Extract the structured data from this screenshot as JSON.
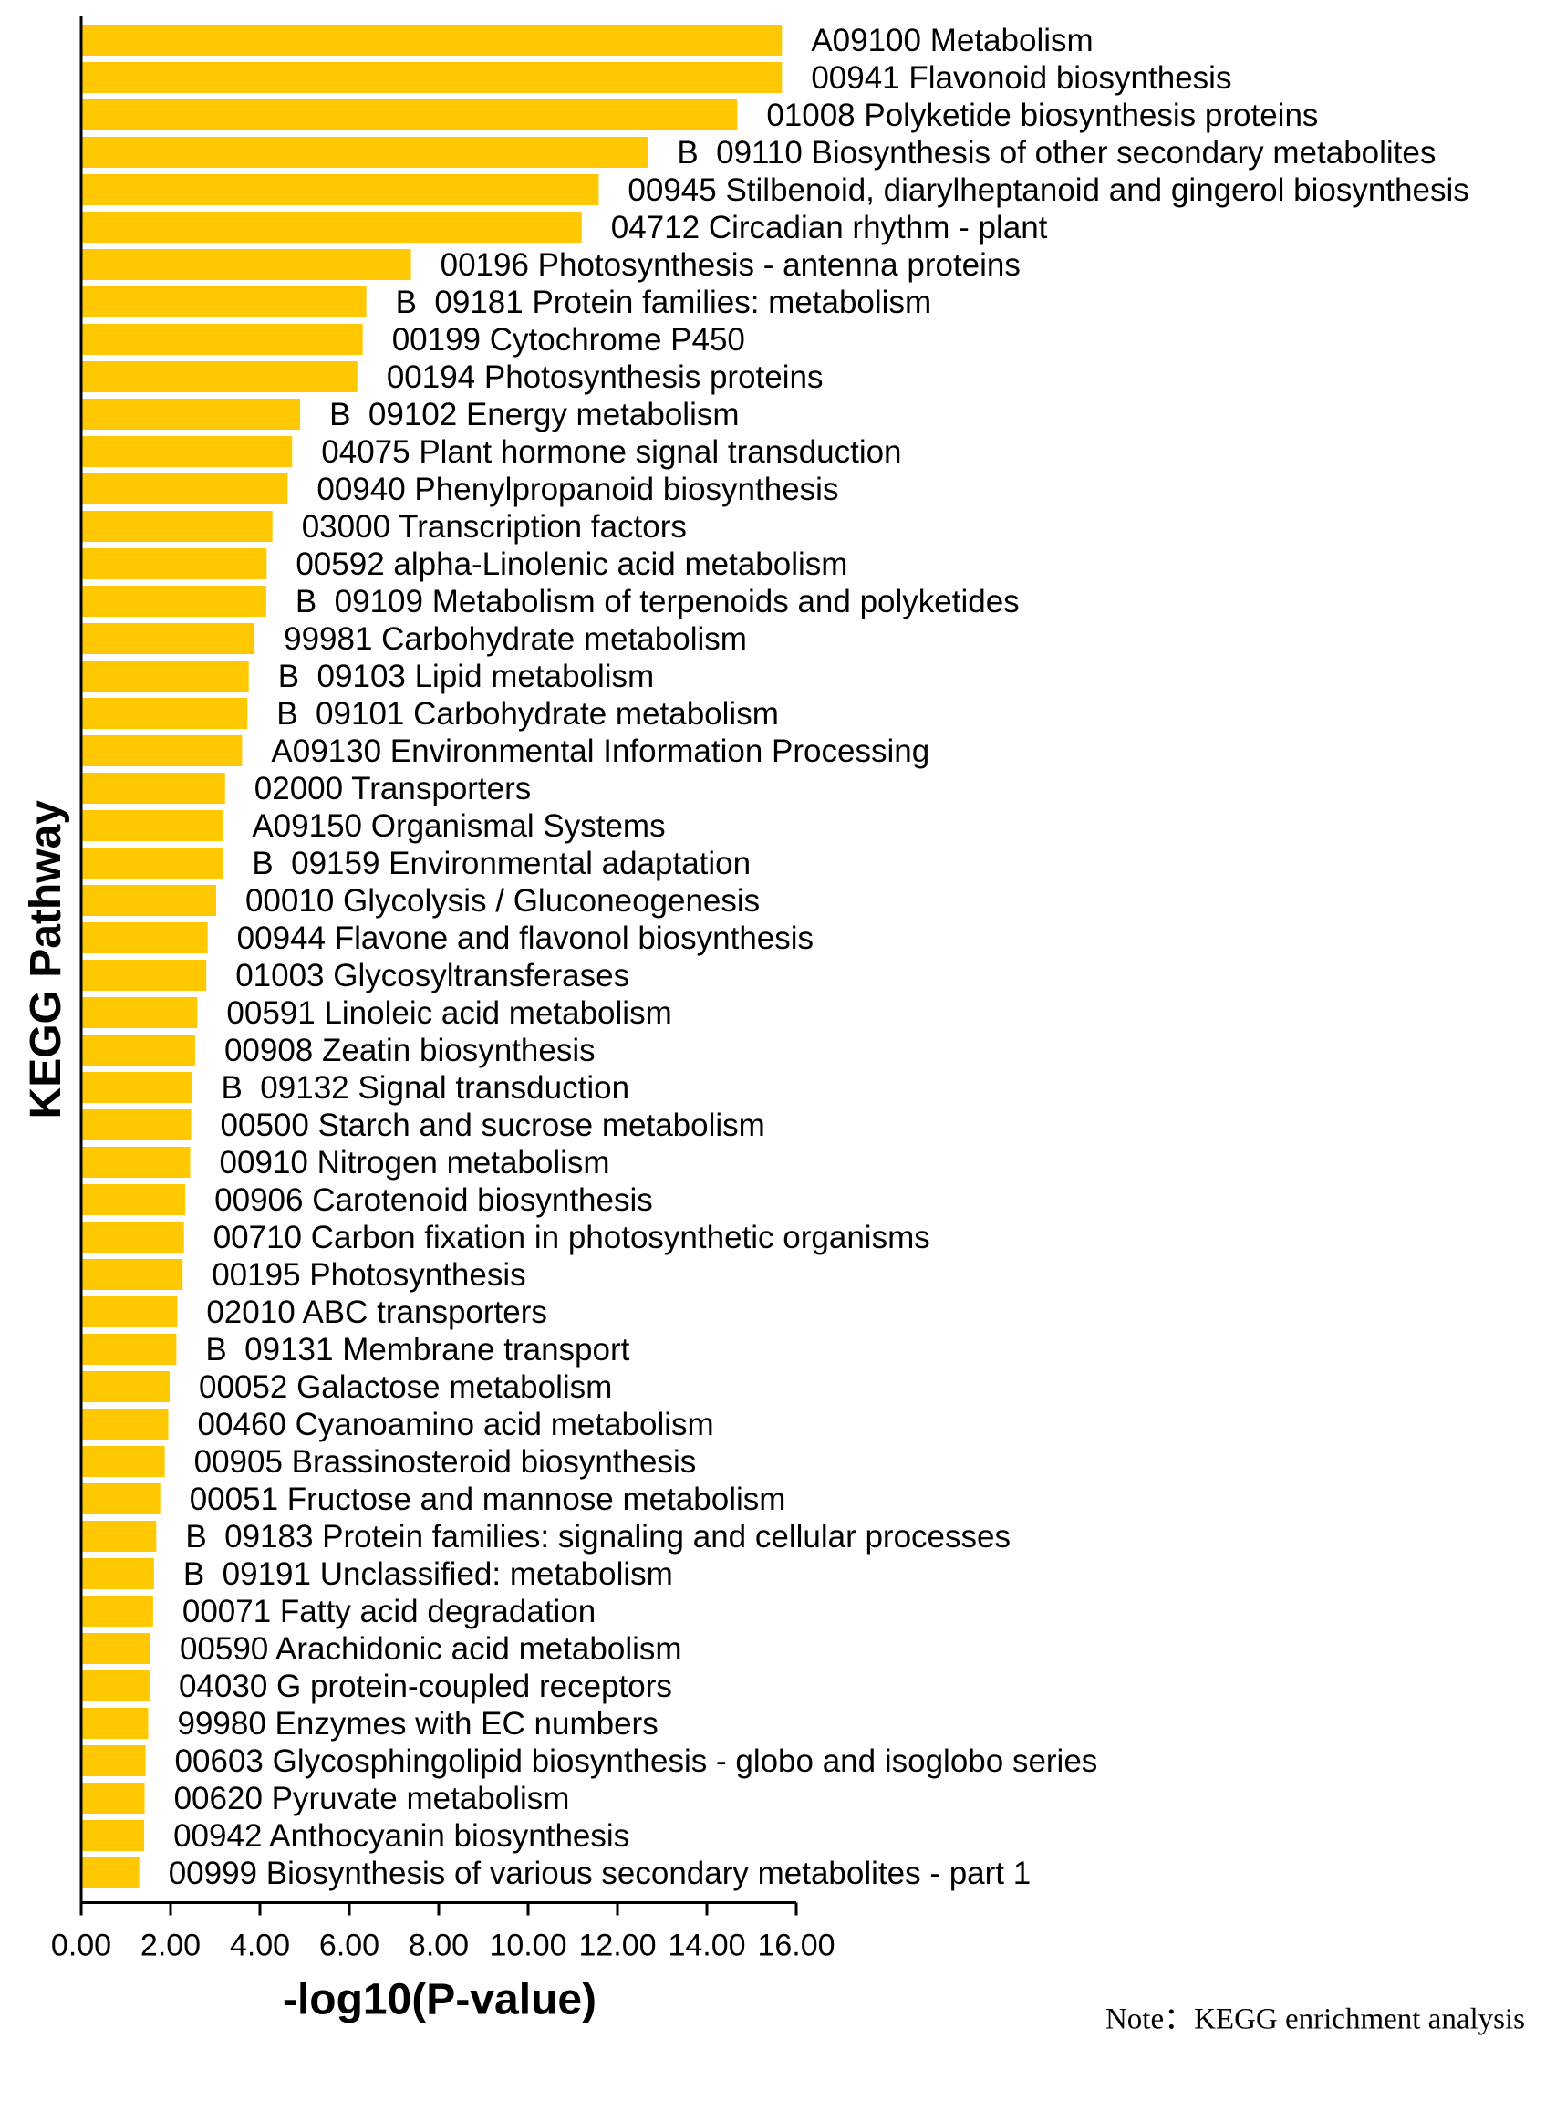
{
  "chart_data": {
    "type": "bar",
    "orientation": "horizontal",
    "title": "",
    "xlabel": "-log10(P-value)",
    "ylabel": "KEGG Pathway",
    "note": "Note：KEGG enrichment analysis",
    "xlim": [
      0,
      16
    ],
    "xticks": [
      "0.00",
      "2.00",
      "4.00",
      "6.00",
      "8.00",
      "10.00",
      "12.00",
      "14.00",
      "16.00"
    ],
    "bar_color": "#FFC800",
    "grid": false,
    "legend": "none",
    "categories": [
      "A09100 Metabolism",
      "00941 Flavonoid biosynthesis",
      "01008 Polyketide biosynthesis proteins",
      "B  09110 Biosynthesis of other secondary metabolites",
      "00945 Stilbenoid, diarylheptanoid and gingerol biosynthesis",
      "04712 Circadian rhythm - plant",
      "00196 Photosynthesis - antenna proteins",
      "B  09181 Protein families: metabolism",
      "00199 Cytochrome P450",
      "00194 Photosynthesis proteins",
      "B  09102 Energy metabolism",
      "04075 Plant hormone signal transduction",
      "00940 Phenylpropanoid biosynthesis",
      "03000 Transcription factors",
      "00592 alpha-Linolenic acid metabolism",
      "B  09109 Metabolism of terpenoids and polyketides",
      "99981 Carbohydrate metabolism",
      "B  09103 Lipid metabolism",
      "B  09101 Carbohydrate metabolism",
      "A09130 Environmental Information Processing",
      "02000 Transporters",
      "A09150 Organismal Systems",
      "B  09159 Environmental adaptation",
      "00010 Glycolysis / Gluconeogenesis",
      "00944 Flavone and flavonol biosynthesis",
      "01003 Glycosyltransferases",
      "00591 Linoleic acid metabolism",
      "00908 Zeatin biosynthesis",
      "B  09132 Signal transduction",
      "00500 Starch and sucrose metabolism",
      "00910 Nitrogen metabolism",
      "00906 Carotenoid biosynthesis",
      "00710 Carbon fixation in photosynthetic organisms",
      "00195 Photosynthesis",
      "02010 ABC transporters",
      "B  09131 Membrane transport",
      "00052 Galactose metabolism",
      "00460 Cyanoamino acid metabolism",
      "00905 Brassinosteroid biosynthesis",
      "00051 Fructose and mannose metabolism",
      "B  09183 Protein families: signaling and cellular processes",
      "B  09191 Unclassified: metabolism",
      "00071 Fatty acid degradation",
      "00590 Arachidonic acid metabolism",
      "04030 G protein-coupled receptors",
      "99980 Enzymes with EC numbers",
      "00603 Glycosphingolipid biosynthesis - globo and isoglobo series",
      "00620 Pyruvate metabolism",
      "00942 Anthocyanin biosynthesis",
      "00999 Biosynthesis of various secondary metabolites - part 1"
    ],
    "values": [
      15.68,
      15.68,
      14.68,
      12.68,
      11.58,
      11.2,
      7.38,
      6.38,
      6.3,
      6.18,
      4.9,
      4.72,
      4.62,
      4.28,
      4.15,
      4.14,
      3.88,
      3.75,
      3.72,
      3.6,
      3.22,
      3.17,
      3.17,
      3.02,
      2.83,
      2.8,
      2.6,
      2.55,
      2.48,
      2.46,
      2.44,
      2.33,
      2.3,
      2.27,
      2.15,
      2.13,
      1.98,
      1.95,
      1.87,
      1.77,
      1.68,
      1.63,
      1.61,
      1.55,
      1.53,
      1.5,
      1.44,
      1.42,
      1.41,
      1.3
    ]
  }
}
